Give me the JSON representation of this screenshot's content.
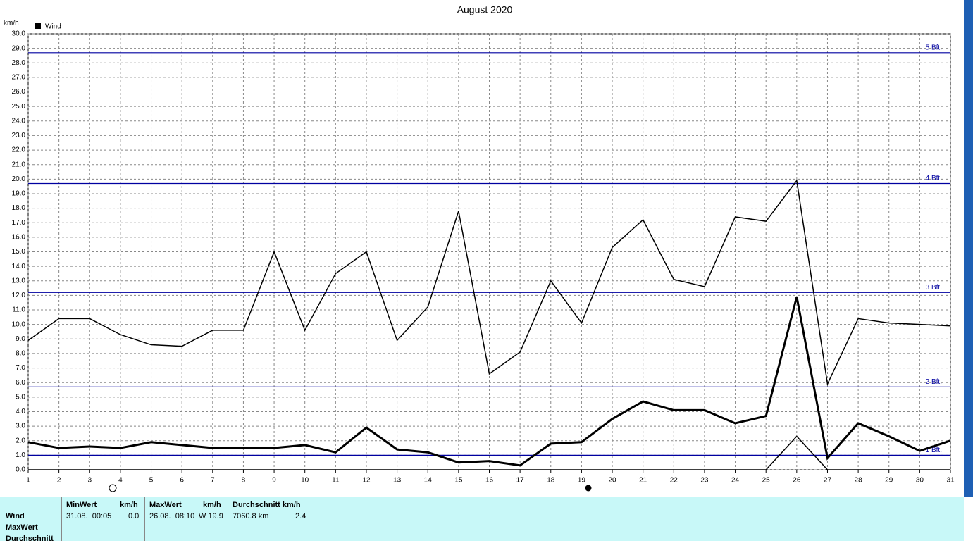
{
  "chart_data": {
    "type": "line",
    "title": "August 2020",
    "y_unit": "km/h",
    "legend": "Wind",
    "legend_color": "#000000",
    "x": [
      1,
      2,
      3,
      4,
      5,
      6,
      7,
      8,
      9,
      10,
      11,
      12,
      13,
      14,
      15,
      16,
      17,
      18,
      19,
      20,
      21,
      22,
      23,
      24,
      25,
      26,
      27,
      28,
      29,
      30,
      31
    ],
    "series": [
      {
        "color": "#000000",
        "width": 1.5,
        "values": [
          8.9,
          10.4,
          10.4,
          9.3,
          8.6,
          8.5,
          9.6,
          9.6,
          15.0,
          9.6,
          13.5,
          15.0,
          8.9,
          11.2,
          17.8,
          6.6,
          8.1,
          13.0,
          10.1,
          15.3,
          17.2,
          13.1,
          12.6,
          17.4,
          17.1,
          19.9,
          5.9,
          10.4,
          10.1,
          10.0,
          9.9
        ]
      },
      {
        "color": "#000000",
        "width": 3,
        "values": [
          1.9,
          1.5,
          1.6,
          1.5,
          1.9,
          1.7,
          1.5,
          1.5,
          1.5,
          1.7,
          1.2,
          2.9,
          1.4,
          1.2,
          0.5,
          0.6,
          0.3,
          1.8,
          1.9,
          3.5,
          4.7,
          4.1,
          4.1,
          3.2,
          3.7,
          11.9,
          0.8,
          3.2,
          2.3,
          1.3,
          2.0
        ]
      },
      {
        "color": "#000000",
        "width": 1.5,
        "values": [
          0,
          0,
          0,
          0,
          0,
          0,
          0,
          0,
          0,
          0,
          0,
          0,
          0,
          0,
          0,
          0,
          0,
          0,
          0,
          0,
          0,
          0,
          0,
          0,
          0,
          2.3,
          0,
          0,
          0,
          0,
          0
        ]
      }
    ],
    "xlim": [
      1,
      31
    ],
    "xticks": [
      1,
      2,
      3,
      4,
      5,
      6,
      7,
      8,
      9,
      10,
      11,
      12,
      13,
      14,
      15,
      16,
      17,
      18,
      19,
      20,
      21,
      22,
      23,
      24,
      25,
      26,
      27,
      28,
      29,
      30,
      31
    ],
    "ylim": [
      0,
      30
    ],
    "yticks": [
      {
        "value": 0,
        "label": "0.0"
      },
      {
        "value": 1,
        "label": "1.0"
      },
      {
        "value": 2,
        "label": "2.0"
      },
      {
        "value": 3,
        "label": "3.0"
      },
      {
        "value": 4,
        "label": "4.0"
      },
      {
        "value": 5,
        "label": "5.0"
      },
      {
        "value": 6,
        "label": "6.0"
      },
      {
        "value": 7,
        "label": "7.0"
      },
      {
        "value": 8,
        "label": "8.0"
      },
      {
        "value": 9,
        "label": "9.0"
      },
      {
        "value": 10,
        "label": "10.0"
      },
      {
        "value": 11,
        "label": "11.0"
      },
      {
        "value": 12,
        "label": "12.0"
      },
      {
        "value": 13,
        "label": "13.0"
      },
      {
        "value": 14,
        "label": "14.0"
      },
      {
        "value": 15,
        "label": "15.0"
      },
      {
        "value": 16,
        "label": "16.0"
      },
      {
        "value": 17,
        "label": "17.0"
      },
      {
        "value": 18,
        "label": "18.0"
      },
      {
        "value": 19,
        "label": "19.0"
      },
      {
        "value": 20,
        "label": "20.0"
      },
      {
        "value": 21,
        "label": "21.0"
      },
      {
        "value": 22,
        "label": "22.0"
      },
      {
        "value": 23,
        "label": "23.0"
      },
      {
        "value": 24,
        "label": "24.0"
      },
      {
        "value": 25,
        "label": "25.0"
      },
      {
        "value": 26,
        "label": "26.0"
      },
      {
        "value": 27,
        "label": "27.0"
      },
      {
        "value": 28,
        "label": "28.0"
      },
      {
        "value": 29,
        "label": "29.0"
      },
      {
        "value": 30,
        "label": "30.0"
      }
    ],
    "grid": true,
    "reference_lines": [
      {
        "value": 1.0,
        "label": "1 Bft."
      },
      {
        "value": 5.7,
        "label": "2 Bft."
      },
      {
        "value": 12.2,
        "label": "3 Bft."
      },
      {
        "value": 19.7,
        "label": "4 Bft."
      },
      {
        "value": 28.7,
        "label": "5 Bft."
      }
    ],
    "reference_color": "#0000a0"
  },
  "table": {
    "row_labels": [
      "Wind",
      "MaxWert",
      "Durchschnitt"
    ],
    "columns": [
      {
        "header": "MinWert",
        "unit": "km/h",
        "time": "31.08.  00:05",
        "value": "0.0"
      },
      {
        "header": "MaxWert",
        "unit": "km/h",
        "time": "26.08.  08:10",
        "value": "W 19.9"
      },
      {
        "header": "Durchschnitt km/h",
        "time": "7060.8 km",
        "value": "2.4"
      }
    ]
  }
}
